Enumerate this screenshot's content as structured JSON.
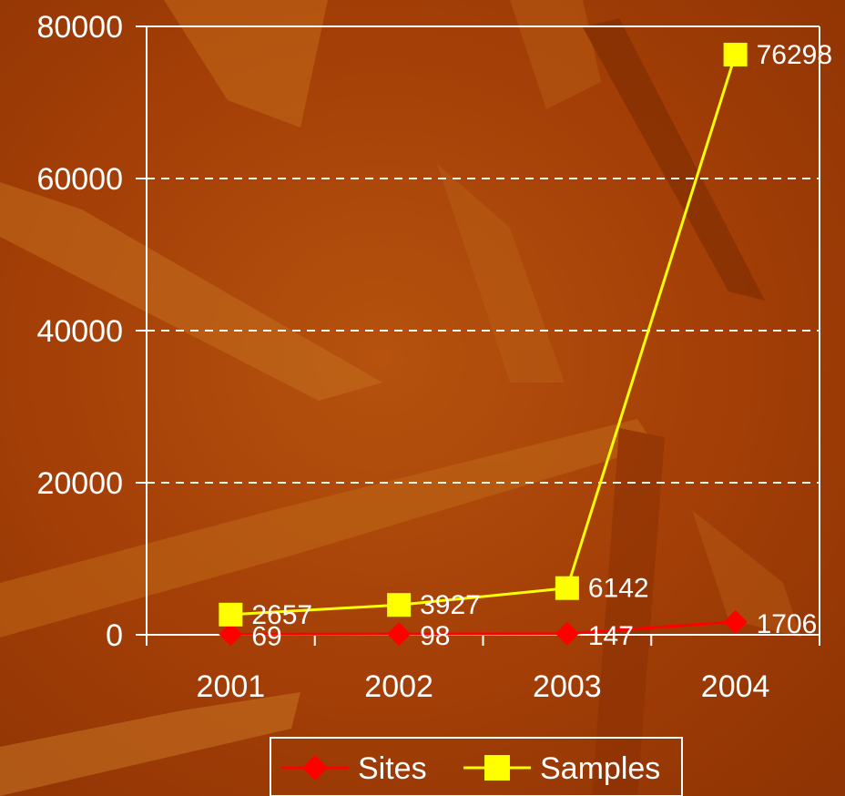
{
  "chart_data": {
    "type": "line",
    "categories": [
      "2001",
      "2002",
      "2003",
      "2004"
    ],
    "series": [
      {
        "name": "Sites",
        "values": [
          69,
          98,
          147,
          1706
        ],
        "color": "#ff0000",
        "marker": "diamond"
      },
      {
        "name": "Samples",
        "values": [
          2657,
          3927,
          6142,
          76298
        ],
        "color": "#ffff00",
        "marker": "square"
      }
    ],
    "ylim": [
      0,
      80000
    ],
    "yticks": [
      "0",
      "20000",
      "40000",
      "60000",
      "80000"
    ],
    "grid": "horizontal-dashed",
    "legend": "bottom",
    "title": "",
    "xlabel": "",
    "ylabel": ""
  },
  "colors": {
    "background": "#a53f06",
    "axis": "#ffffff",
    "text": "#ffffff"
  }
}
